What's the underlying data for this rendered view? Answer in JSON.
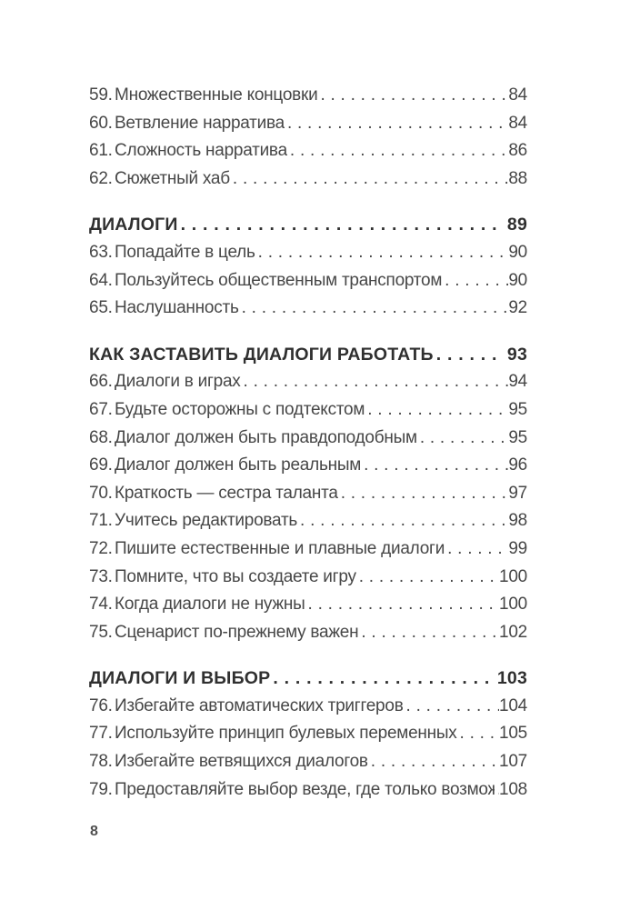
{
  "page": {
    "footer_page_number": "8"
  },
  "colors": {
    "background": "#ffffff",
    "text": "#474747",
    "header_text": "#303030"
  },
  "toc": {
    "sections": [
      {
        "header": null,
        "entries": [
          {
            "num": "59.",
            "title": "Множественные концовки",
            "page": "84"
          },
          {
            "num": "60.",
            "title": "Ветвление нарратива",
            "page": "84"
          },
          {
            "num": "61.",
            "title": "Сложность нарратива",
            "page": "86"
          },
          {
            "num": "62.",
            "title": "Сюжетный хаб",
            "page": "88"
          }
        ]
      },
      {
        "header": {
          "title": "ДИАЛОГИ",
          "page": "89"
        },
        "entries": [
          {
            "num": "63.",
            "title": "Попадайте в цель",
            "page": "90"
          },
          {
            "num": "64.",
            "title": "Пользуйтесь общественным транспортом",
            "page": "90"
          },
          {
            "num": "65.",
            "title": "Наслушанность",
            "page": "92"
          }
        ]
      },
      {
        "header": {
          "title": "КАК ЗАСТАВИТЬ ДИАЛОГИ РАБОТАТЬ",
          "page": "93"
        },
        "entries": [
          {
            "num": "66.",
            "title": "Диалоги в играх",
            "page": "94"
          },
          {
            "num": "67.",
            "title": "Будьте осторожны с подтекстом",
            "page": "95"
          },
          {
            "num": "68.",
            "title": "Диалог должен быть правдоподобным",
            "page": "95"
          },
          {
            "num": "69.",
            "title": "Диалог должен быть реальным",
            "page": "96"
          },
          {
            "num": "70.",
            "title": "Краткость — сестра таланта",
            "page": "97"
          },
          {
            "num": "71.",
            "title": "Учитесь редактировать",
            "page": "98"
          },
          {
            "num": "72.",
            "title": "Пишите естественные и плавные диалоги",
            "page": "99"
          },
          {
            "num": "73.",
            "title": "Помните, что вы создаете игру",
            "page": "100"
          },
          {
            "num": "74.",
            "title": "Когда диалоги не нужны",
            "page": "100"
          },
          {
            "num": "75.",
            "title": "Сценарист по-прежнему важен",
            "page": "102"
          }
        ]
      },
      {
        "header": {
          "title": "ДИАЛОГИ И ВЫБОР",
          "page": "103"
        },
        "entries": [
          {
            "num": "76.",
            "title": "Избегайте автоматических триггеров",
            "page": "104"
          },
          {
            "num": "77.",
            "title": "Используйте принцип булевых переменных",
            "page": "105"
          },
          {
            "num": "78.",
            "title": "Избегайте ветвящихся диалогов",
            "page": "107"
          },
          {
            "num": "79.",
            "title": "Предоставляйте выбор везде, где только возможно",
            "page": "108"
          }
        ]
      }
    ]
  }
}
